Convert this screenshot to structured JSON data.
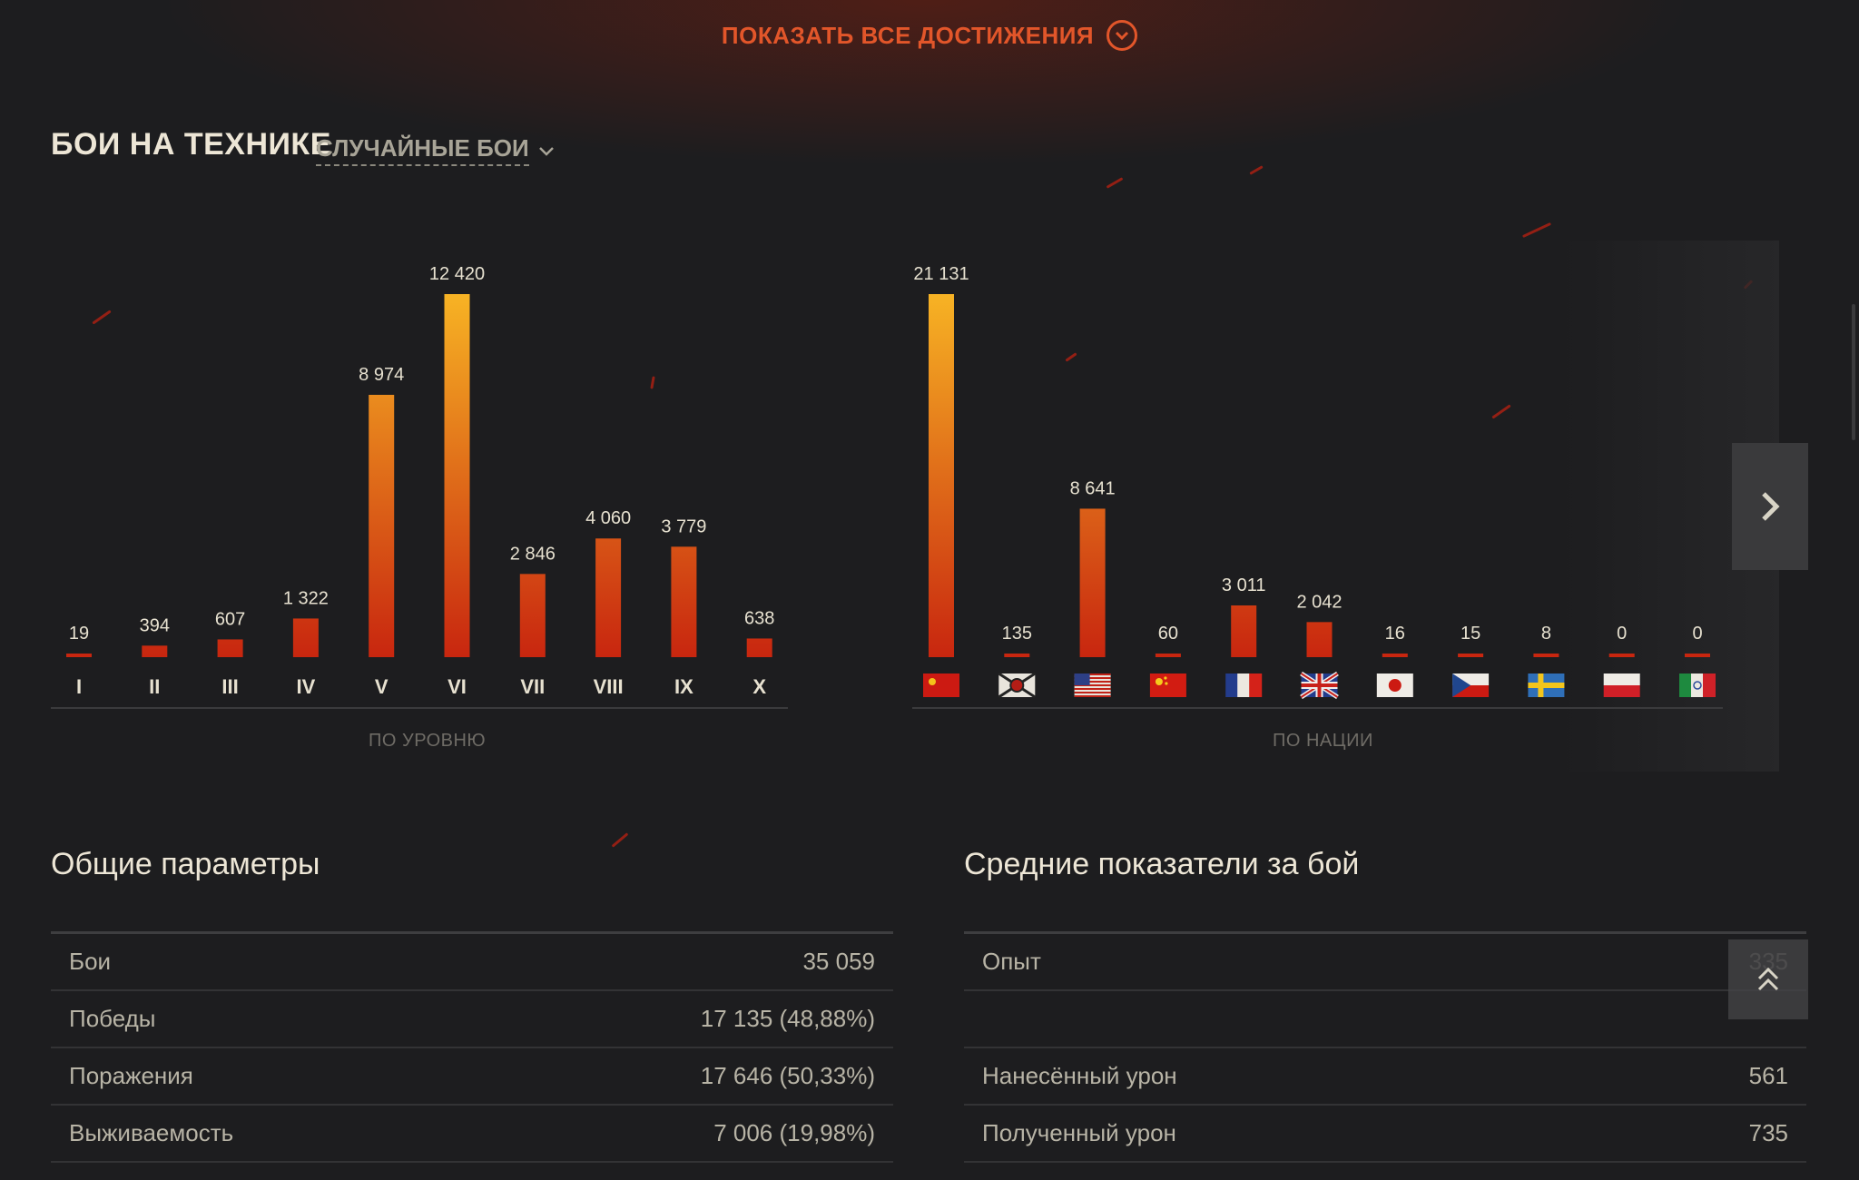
{
  "header": {
    "show_all_label": "ПОКАЗАТЬ ВСЕ ДОСТИЖЕНИЯ",
    "section_title": "БОИ НА ТЕХНИКЕ",
    "mode_label": "СЛУЧАЙНЫЕ БОИ"
  },
  "colors": {
    "accent": "#e2562a",
    "bar_low": "#c8260f",
    "bar_high": "#f7b324"
  },
  "chart_data": [
    {
      "type": "bar",
      "categories": [
        "I",
        "II",
        "III",
        "IV",
        "V",
        "VI",
        "VII",
        "VIII",
        "IX",
        "X"
      ],
      "values": [
        19,
        394,
        607,
        1322,
        8974,
        12420,
        2846,
        4060,
        3779,
        638
      ],
      "value_labels": [
        "19",
        "394",
        "607",
        "1 322",
        "8 974",
        "12 420",
        "2 846",
        "4 060",
        "3 779",
        "638"
      ],
      "xlabel": "ПО УРОВНЮ",
      "ylim": [
        0,
        12420
      ]
    },
    {
      "type": "bar",
      "categories": [
        "ussr-flag",
        "germany-flag",
        "usa-flag",
        "china-flag",
        "france-flag",
        "uk-flag",
        "japan-flag",
        "czech-flag",
        "sweden-flag",
        "poland-flag",
        "italy-flag"
      ],
      "values": [
        21131,
        135,
        8641,
        60,
        3011,
        2042,
        16,
        15,
        8,
        0,
        0
      ],
      "value_labels": [
        "21 131",
        "135",
        "8 641",
        "60",
        "3 011",
        "2 042",
        "16",
        "15",
        "8",
        "0",
        "0"
      ],
      "xlabel": "ПО НАЦИИ",
      "ylim": [
        0,
        21131
      ]
    }
  ],
  "general": {
    "title": "Общие параметры",
    "rows": [
      {
        "label": "Бои",
        "value": "35 059"
      },
      {
        "label": "Победы",
        "value": "17 135 (48,88%)"
      },
      {
        "label": "Поражения",
        "value": "17 646 (50,33%)"
      },
      {
        "label": "Выживаемость",
        "value": "7 006 (19,98%)"
      }
    ]
  },
  "average": {
    "title": "Средние показатели за бой",
    "rows": [
      {
        "label": "Опыт",
        "value": "335"
      },
      {
        "label": "",
        "value": ""
      },
      {
        "label": "Нанесённый урон",
        "value": "561"
      },
      {
        "label": "Полученный урон",
        "value": "735"
      }
    ]
  }
}
